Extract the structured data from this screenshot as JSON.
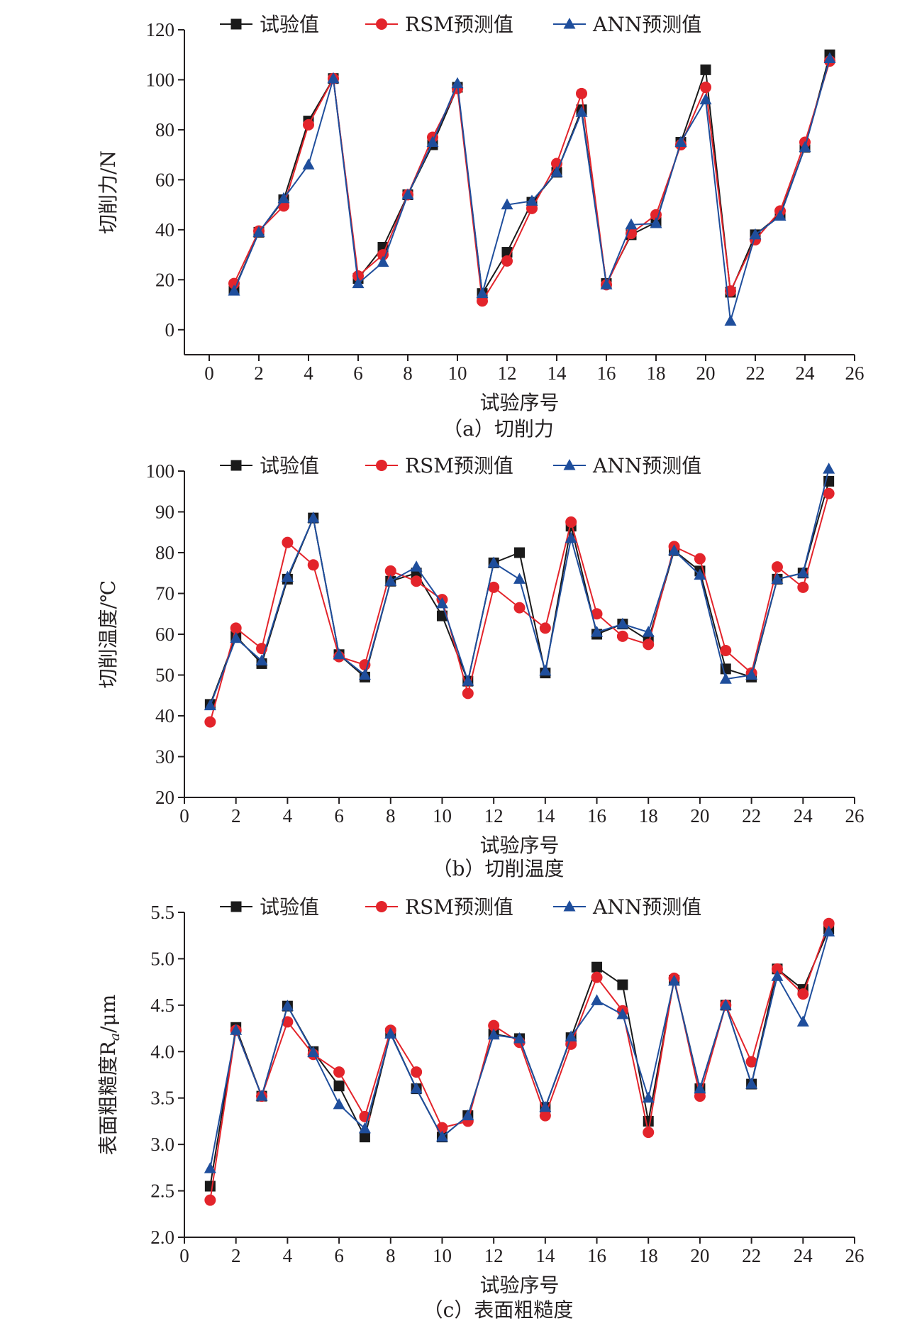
{
  "colors": {
    "试验值": "#1a1a1a",
    "RSM预测值": "#e3242b",
    "ANN预测值": "#1f4e9c"
  },
  "chart_data": [
    {
      "type": "line",
      "caption": "（a）切削力",
      "xlabel": "试验序号",
      "ylabel": "切削力/N",
      "xlim": [
        -1,
        26
      ],
      "ylim": [
        -10,
        120
      ],
      "xticks": [
        0,
        2,
        4,
        6,
        8,
        10,
        12,
        14,
        16,
        18,
        20,
        22,
        24,
        26
      ],
      "yticks": [
        0,
        20,
        40,
        60,
        80,
        100,
        120
      ],
      "ytick_labels": [
        "0",
        "20",
        "40",
        "60",
        "80",
        "100",
        "120"
      ],
      "x": [
        1,
        2,
        3,
        4,
        5,
        6,
        7,
        8,
        9,
        10,
        11,
        12,
        13,
        14,
        15,
        16,
        17,
        18,
        19,
        20,
        21,
        22,
        23,
        24,
        25
      ],
      "legend_position": "top",
      "series": [
        {
          "name": "试验值",
          "marker": "square",
          "values": [
            16,
            39,
            52,
            83.5,
            100.5,
            20.5,
            33,
            54,
            74,
            97,
            14.5,
            31,
            51,
            63,
            88,
            18.5,
            38,
            43,
            75,
            104,
            15,
            38,
            46,
            73,
            110
          ]
        },
        {
          "name": "RSM预测值",
          "marker": "circle",
          "values": [
            18.5,
            39.5,
            49.5,
            82,
            100.5,
            21.5,
            30,
            54,
            77,
            96.5,
            11.5,
            27.5,
            48.5,
            66.5,
            94.5,
            18,
            38.5,
            46,
            74,
            97,
            15.5,
            36,
            47.5,
            75,
            107.5
          ]
        },
        {
          "name": "ANN预测值",
          "marker": "triangle",
          "values": [
            15.5,
            39,
            52.5,
            66,
            100.5,
            18.5,
            27,
            54,
            75,
            98.5,
            14.5,
            50,
            51.5,
            63,
            87,
            18,
            42,
            42.5,
            75,
            92,
            3.5,
            38,
            45.5,
            73,
            108.5
          ]
        }
      ]
    },
    {
      "type": "line",
      "caption": "（b）切削温度",
      "xlabel": "试验序号",
      "ylabel": "切削温度/℃",
      "xlim": [
        0,
        26
      ],
      "ylim": [
        20,
        100
      ],
      "xticks": [
        0,
        2,
        4,
        6,
        8,
        10,
        12,
        14,
        16,
        18,
        20,
        22,
        24,
        26
      ],
      "yticks": [
        20,
        30,
        40,
        50,
        60,
        70,
        80,
        90,
        100
      ],
      "ytick_labels": [
        "20",
        "30",
        "40",
        "50",
        "60",
        "70",
        "80",
        "90",
        "100"
      ],
      "x": [
        1,
        2,
        3,
        4,
        5,
        6,
        7,
        8,
        9,
        10,
        11,
        12,
        13,
        14,
        15,
        16,
        17,
        18,
        19,
        20,
        21,
        22,
        23,
        24,
        25
      ],
      "legend_position": "top",
      "series": [
        {
          "name": "试验值",
          "marker": "square",
          "values": [
            42.8,
            59.5,
            52.8,
            73.5,
            88.5,
            55,
            49.5,
            73,
            75,
            64.5,
            48.5,
            77.5,
            80,
            50.5,
            86.5,
            60,
            62.5,
            58.5,
            80.5,
            75.5,
            51.5,
            49.5,
            73.5,
            75,
            97.5
          ]
        },
        {
          "name": "RSM预测值",
          "marker": "circle",
          "values": [
            38.5,
            61.5,
            56.5,
            82.5,
            77,
            54.5,
            52.5,
            75.5,
            73,
            68.5,
            45.5,
            71.5,
            66.5,
            61.5,
            87.5,
            65,
            59.5,
            57.5,
            81.5,
            78.5,
            56,
            50.5,
            76.5,
            71.5,
            94.5
          ]
        },
        {
          "name": "ANN预测值",
          "marker": "triangle",
          "values": [
            42.5,
            59,
            53.5,
            74,
            88.5,
            55,
            50,
            73,
            76.5,
            67.5,
            48.5,
            77.5,
            73.5,
            51,
            83.5,
            60.5,
            62.5,
            60.5,
            80.5,
            74.5,
            49,
            50,
            73.5,
            75,
            100.5
          ]
        }
      ]
    },
    {
      "type": "line",
      "caption": "（c）表面粗糙度",
      "xlabel": "试验序号",
      "ylabel": "表面粗糙度R",
      "ylabel_sub": "a",
      "ylabel_unit": "/μm",
      "xlim": [
        0,
        26
      ],
      "ylim": [
        2.0,
        5.5
      ],
      "xticks": [
        0,
        2,
        4,
        6,
        8,
        10,
        12,
        14,
        16,
        18,
        20,
        22,
        24,
        26
      ],
      "yticks": [
        2.0,
        2.5,
        3.0,
        3.5,
        4.0,
        4.5,
        5.0,
        5.5
      ],
      "ytick_labels": [
        "2.0",
        "2.5",
        "3.0",
        "3.5",
        "4.0",
        "4.5",
        "5.0",
        "5.5"
      ],
      "x": [
        1,
        2,
        3,
        4,
        5,
        6,
        7,
        8,
        9,
        10,
        11,
        12,
        13,
        14,
        15,
        16,
        17,
        18,
        19,
        20,
        21,
        22,
        23,
        24,
        25
      ],
      "legend_position": "top",
      "series": [
        {
          "name": "试验值",
          "marker": "square",
          "values": [
            2.55,
            4.26,
            3.52,
            4.49,
            4,
            3.63,
            3.08,
            4.2,
            3.6,
            3.08,
            3.31,
            4.19,
            4.14,
            3.4,
            4.15,
            4.91,
            4.72,
            3.25,
            4.77,
            3.6,
            4.5,
            3.65,
            4.89,
            4.67,
            5.32
          ]
        },
        {
          "name": "RSM预测值",
          "marker": "circle",
          "values": [
            2.4,
            4.23,
            3.52,
            4.32,
            3.97,
            3.78,
            3.3,
            4.23,
            3.78,
            3.18,
            3.25,
            4.28,
            4.1,
            3.31,
            4.08,
            4.8,
            4.44,
            3.13,
            4.79,
            3.52,
            4.5,
            3.89,
            4.89,
            4.62,
            5.38
          ]
        },
        {
          "name": "ANN预测值",
          "marker": "triangle",
          "values": [
            2.74,
            4.23,
            3.52,
            4.49,
            3.99,
            3.43,
            3.17,
            4.19,
            3.6,
            3.08,
            3.31,
            4.18,
            4.14,
            3.4,
            4.16,
            4.55,
            4.4,
            3.5,
            4.76,
            3.6,
            4.5,
            3.65,
            4.81,
            4.32,
            5.29
          ]
        }
      ]
    }
  ]
}
